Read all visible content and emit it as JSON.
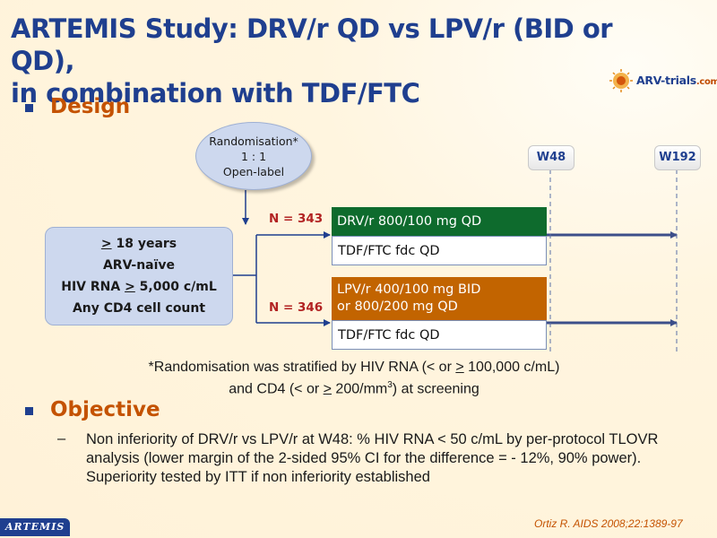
{
  "title": {
    "line1": "ARTEMIS Study: DRV/r QD vs LPV/r (BID or QD),",
    "line2": "in combination with TDF/FTC"
  },
  "logo": {
    "name": "ARV-trials",
    "domain": ".com"
  },
  "design_heading": "Design",
  "randomisation": {
    "line1": "Randomisation*",
    "ratio": "1 : 1",
    "line3": "Open-label"
  },
  "criteria": {
    "age_sym": ">",
    "age_rest": " 18 years",
    "naive": "ARV-naïve",
    "rna_pre": "HIV RNA ",
    "rna_sym": ">",
    "rna_post": " 5,000 c/mL",
    "cd4": "Any CD4 cell count"
  },
  "arms": [
    {
      "n_label": "N = 343",
      "drug": "DRV/r 800/100 mg QD",
      "backbone": "TDF/FTC fdc QD"
    },
    {
      "n_label": "N = 346",
      "drug_line1": "LPV/r 400/100 mg BID",
      "drug_line2": "or 800/200 mg QD",
      "backbone": "TDF/FTC fdc QD"
    }
  ],
  "timepoints": [
    "W48",
    "W192"
  ],
  "footnote": {
    "line1_a": "*Randomisation was stratified by HIV RNA (< or ",
    "line1_sym": ">",
    "line1_b": " 100,000 c/mL)",
    "line2_a": "and CD4 (< or ",
    "line2_sym": ">",
    "line2_b": " 200/mm",
    "line2_sup": "3",
    "line2_c": ") at screening"
  },
  "objective_heading": "Objective",
  "objective_dash": "–",
  "objective_text": "Non inferiority of DRV/r vs LPV/r at W48: % HIV RNA < 50 c/mL by per-protocol TLOVR analysis (lower margin of the 2-sided 95% CI for the difference = - 12%, 90% power). Superiority tested by ITT if non inferiority established",
  "citation": "Ortiz R. AIDS 2008;22:1389-97",
  "footer_tag": "ARTEMIS",
  "colors": {
    "title_blue": "#1f3f8f",
    "heading_orange": "#c45200",
    "drv_green": "#0e6b2d",
    "lpv_orange": "#c26400",
    "n_red": "#b22222",
    "box_blue": "#cdd8ee"
  }
}
